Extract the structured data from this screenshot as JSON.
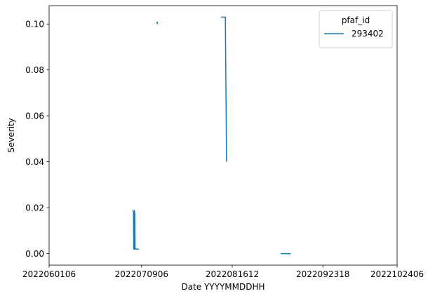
{
  "chart_data": {
    "type": "line",
    "xlabel": "Date YYYYMMDDHH",
    "ylabel": "Severity",
    "x_tick_labels": [
      "2022060106",
      "2022070906",
      "2022081612",
      "2022092318",
      "2022102406"
    ],
    "x_tick_hours": [
      0,
      912,
      1806,
      2700,
      3432
    ],
    "y_ticks": [
      0.0,
      0.02,
      0.04,
      0.06,
      0.08,
      0.1
    ],
    "y_tick_labels": [
      "0.00",
      "0.02",
      "0.04",
      "0.06",
      "0.08",
      "0.10"
    ],
    "xlim_hours": [
      0,
      3432
    ],
    "ylim": [
      -0.005,
      0.108
    ],
    "grid": false,
    "legend": {
      "title": "pfaf_id",
      "placement": "top-right"
    },
    "color": "#1f77b4",
    "series": [
      {
        "name": "293402",
        "segments": [
          {
            "x_hours": [
              826,
              832,
              835,
              838,
              841,
              842,
              845,
              848,
              850,
              884
            ],
            "y": [
              0.019,
              0.018,
              0.002,
              0.002,
              0.019,
              0.002,
              0.018,
              0.002,
              0.002,
              0.002
            ]
          },
          {
            "x_hours": [
              1064,
              1066,
              1068
            ],
            "y": [
              0.1,
              0.101,
              0.1
            ]
          },
          {
            "x_hours": [
              1696,
              1738,
              1738,
              1750
            ],
            "y": [
              0.103,
              0.103,
              0.103,
              0.04
            ]
          },
          {
            "x_hours": [
              2282,
              2382
            ],
            "y": [
              0.0,
              0.0
            ]
          }
        ]
      }
    ]
  }
}
